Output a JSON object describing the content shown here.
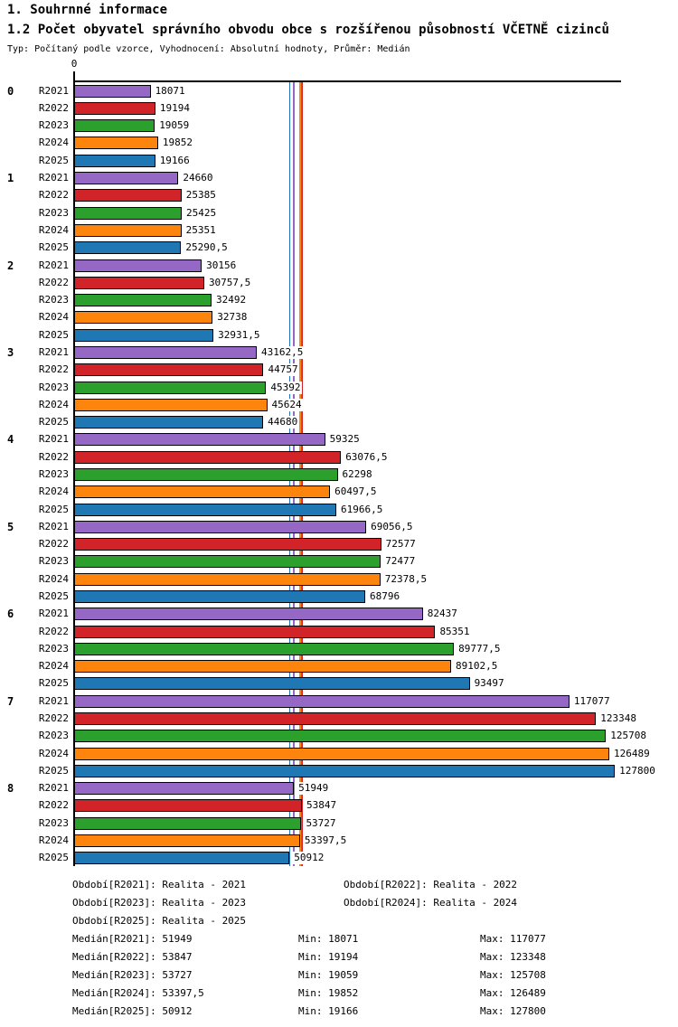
{
  "header": {
    "title": "1. Souhrnné informace",
    "subtitle": "1.2 Počet obyvatel správního obvodu obce s rozšířenou působností VČETNĚ cizinců",
    "meta": "Typ: Počítaný podle vzorce, Vyhodnocení: Absolutní hodnoty, Průměr: Medián"
  },
  "chart_data": {
    "type": "bar",
    "orientation": "horizontal",
    "axis_zero_label": "0",
    "xlim": [
      0,
      129300
    ],
    "grid": false,
    "series": [
      "R2021",
      "R2022",
      "R2023",
      "R2024",
      "R2025"
    ],
    "colors": [
      "#9468c4",
      "#d12328",
      "#2ca02c",
      "#fd850e",
      "#1f77b4"
    ],
    "groups": [
      {
        "label": "0",
        "values": [
          18071,
          19194,
          19059,
          19852,
          19166
        ],
        "display": [
          "18071",
          "19194",
          "19059",
          "19852",
          "19166"
        ]
      },
      {
        "label": "1",
        "values": [
          24660,
          25385,
          25425,
          25351,
          25290.5
        ],
        "display": [
          "24660",
          "25385",
          "25425",
          "25351",
          "25290,5"
        ]
      },
      {
        "label": "2",
        "values": [
          30156,
          30757.5,
          32492,
          32738,
          32931.5
        ],
        "display": [
          "30156",
          "30757,5",
          "32492",
          "32738",
          "32931,5"
        ]
      },
      {
        "label": "3",
        "values": [
          43162.5,
          44757,
          45392,
          45624,
          44680
        ],
        "display": [
          "43162,5",
          "44757",
          "45392",
          "45624",
          "44680"
        ]
      },
      {
        "label": "4",
        "values": [
          59325,
          63076.5,
          62298,
          60497.5,
          61966.5
        ],
        "display": [
          "59325",
          "63076,5",
          "62298",
          "60497,5",
          "61966,5"
        ]
      },
      {
        "label": "5",
        "values": [
          69056.5,
          72577,
          72477,
          72378.5,
          68796
        ],
        "display": [
          "69056,5",
          "72577",
          "72477",
          "72378,5",
          "68796"
        ]
      },
      {
        "label": "6",
        "values": [
          82437,
          85351,
          89777.5,
          89102.5,
          93497
        ],
        "display": [
          "82437",
          "85351",
          "89777,5",
          "89102,5",
          "93497"
        ]
      },
      {
        "label": "7",
        "values": [
          117077,
          123348,
          125708,
          126489,
          127800
        ],
        "display": [
          "117077",
          "123348",
          "125708",
          "126489",
          "127800"
        ]
      },
      {
        "label": "8",
        "values": [
          51949,
          53847,
          53727,
          53397.5,
          50912
        ],
        "display": [
          "51949",
          "53847",
          "53727",
          "53397,5",
          "50912"
        ]
      }
    ],
    "median_lines": [
      {
        "series": "R2021",
        "value": 51949,
        "color": "#9468c4"
      },
      {
        "series": "R2022",
        "value": 53847,
        "color": "#d12328"
      },
      {
        "series": "R2023",
        "value": 53727,
        "color": "#2ca02c"
      },
      {
        "series": "R2024",
        "value": 53397.5,
        "color": "#fd850e"
      },
      {
        "series": "R2025",
        "value": 50912,
        "color": "#1f77b4"
      }
    ]
  },
  "footer": {
    "periods": [
      "Období[R2021]: Realita - 2021",
      "Období[R2022]: Realita - 2022",
      "Období[R2023]: Realita - 2023",
      "Období[R2024]: Realita - 2024",
      "Období[R2025]: Realita - 2025"
    ],
    "stats": [
      {
        "median": "Medián[R2021]: 51949",
        "min": "Min: 18071",
        "max": "Max: 117077"
      },
      {
        "median": "Medián[R2022]: 53847",
        "min": "Min: 19194",
        "max": "Max: 123348"
      },
      {
        "median": "Medián[R2023]: 53727",
        "min": "Min: 19059",
        "max": "Max: 125708"
      },
      {
        "median": "Medián[R2024]: 53397,5",
        "min": "Min: 19852",
        "max": "Max: 126489"
      },
      {
        "median": "Medián[R2025]: 50912",
        "min": "Min: 19166",
        "max": "Max: 127800"
      }
    ]
  }
}
